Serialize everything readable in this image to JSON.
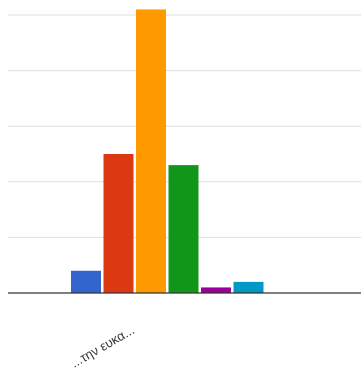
{
  "chart_data": {
    "type": "bar",
    "title": "",
    "xlabel": "",
    "ylabel": "",
    "categories": [
      "...την ευκα..."
    ],
    "ylim": [
      0,
      50
    ],
    "grid": true,
    "gridlines": [
      0,
      10,
      20,
      30,
      40,
      50
    ],
    "legend": "none",
    "series": [
      {
        "color": "#3366cc",
        "values": [
          4
        ]
      },
      {
        "color": "#dc3912",
        "values": [
          25
        ]
      },
      {
        "color": "#ff9900",
        "values": [
          51
        ]
      },
      {
        "color": "#109618",
        "values": [
          23
        ]
      },
      {
        "color": "#990099",
        "values": [
          1
        ]
      },
      {
        "color": "#0099c6",
        "values": [
          2
        ]
      }
    ]
  }
}
